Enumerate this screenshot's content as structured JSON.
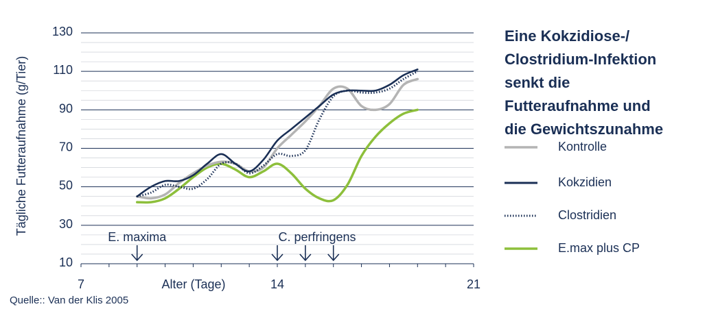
{
  "chart_data": {
    "type": "line",
    "title_lines": [
      "Eine Kokzidiose-/",
      "Clostridium-Infektion",
      "senkt die",
      "Futteraufnahme und",
      "die Gewichtszunahme"
    ],
    "xlabel": "Alter (Tage)",
    "ylabel": "Tägliche  Futteraufnahme (g/Tier)",
    "xlim": [
      7,
      21
    ],
    "ylim": [
      10,
      130
    ],
    "x_ticks": [
      7,
      14,
      21
    ],
    "y_ticks": [
      10,
      30,
      50,
      70,
      90,
      110,
      130
    ],
    "grid": "horizontal",
    "legend_position": "right",
    "series": [
      {
        "name": "Kontrolle",
        "color": "#b4b4b4",
        "style": "solid",
        "x": [
          9,
          9.5,
          10,
          10.5,
          11,
          11.5,
          12,
          12.5,
          13,
          13.5,
          14,
          14.5,
          15,
          15.5,
          16,
          16.5,
          17,
          17.5,
          18,
          18.5,
          19
        ],
        "y": [
          45,
          44,
          46,
          52,
          57,
          61,
          63,
          62,
          58,
          60,
          70,
          77,
          84,
          92,
          101,
          101,
          92,
          90,
          93,
          103,
          106
        ]
      },
      {
        "name": "Kokzidien",
        "color": "#1a2f55",
        "style": "solid",
        "x": [
          9,
          9.5,
          10,
          10.5,
          11,
          11.5,
          12,
          12.5,
          13,
          13.5,
          14,
          14.5,
          15,
          15.5,
          16,
          16.5,
          17,
          17.5,
          18,
          18.5,
          19
        ],
        "y": [
          45,
          50,
          53,
          53,
          56,
          62,
          67,
          62,
          58,
          64,
          74,
          80,
          86,
          92,
          98,
          100,
          100,
          100,
          103,
          108,
          111
        ]
      },
      {
        "name": "Clostridien",
        "color": "#1a2f55",
        "style": "dotted",
        "x": [
          9,
          9.5,
          10,
          10.5,
          11,
          11.5,
          12,
          12.5,
          13,
          13.5,
          14,
          14.5,
          15,
          15.5,
          16,
          16.5,
          17,
          17.5,
          18,
          18.5,
          19
        ],
        "y": [
          45,
          47,
          51,
          50,
          49,
          54,
          62,
          62,
          57,
          61,
          67,
          66,
          69,
          85,
          97,
          100,
          99,
          99,
          101,
          106,
          110
        ]
      },
      {
        "name": "E.max plus CP",
        "color": "#8dbf3b",
        "style": "solid",
        "x": [
          9,
          9.5,
          10,
          10.5,
          11,
          11.5,
          12,
          12.5,
          13,
          13.5,
          14,
          14.5,
          15,
          15.5,
          16,
          16.5,
          17,
          17.5,
          18,
          18.5,
          19
        ],
        "y": [
          42,
          42,
          44,
          49,
          55,
          60,
          62,
          59,
          55,
          58,
          62,
          57,
          49,
          44,
          43,
          51,
          66,
          76,
          83,
          88,
          90
        ]
      }
    ],
    "annotations": [
      {
        "text": "E. maxima",
        "arrow_x": [
          9
        ]
      },
      {
        "text": "C. perfringens",
        "arrow_x": [
          14,
          15,
          16
        ]
      }
    ],
    "source": "Quelle:: Van der Klis 2005"
  }
}
